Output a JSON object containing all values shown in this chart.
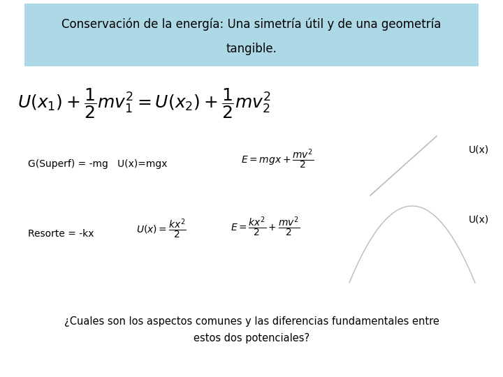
{
  "bg_color": "#ffffff",
  "header_bg_color": "#add8e6",
  "title_line1": "Conservación de la energía: Una simetría útil y de una geometría",
  "title_line2": "tangible.",
  "grav_label": "G(Superf) = -mg   U(x)=mgx",
  "spring_label": "Resorte = -kx",
  "ux_label": "U(x)",
  "question_line1": "¿Cuales son los aspectos comunes y las diferencias fundamentales entre",
  "question_line2": "estos dos potenciales?",
  "header_fontsize": 12,
  "eq_fontsize": 18,
  "label_fontsize": 10,
  "formula_fontsize": 10,
  "question_fontsize": 10.5,
  "line_color": "#bbbbbb",
  "text_color": "#000000"
}
